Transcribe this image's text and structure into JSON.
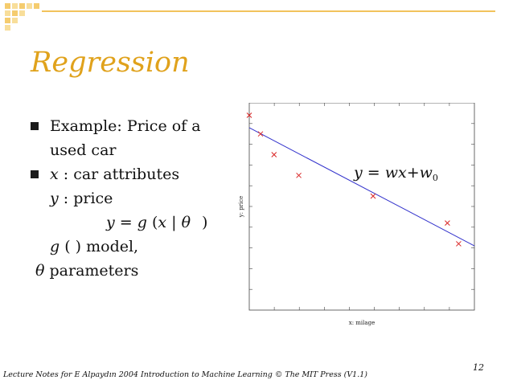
{
  "slide": {
    "title": "Regression",
    "bullets": [
      {
        "line1": "Example: Price of a",
        "line2": "used car"
      },
      {
        "var": "x",
        "rest": " : car attributes"
      }
    ],
    "y_var": "y",
    "y_rest": " : price",
    "eq": {
      "y": "y",
      "eq": " = ",
      "g": "g",
      "open": " (",
      "x": "x",
      "bar": " | ",
      "theta": "θ",
      "close": " )"
    },
    "model": {
      "g": "g",
      "rest": " ( ) model,"
    },
    "params": {
      "theta": "θ",
      "rest": " parameters"
    },
    "footer": "Lecture Notes for E Alpaydın 2004 Introduction to Machine Learning © The MIT Press (V1.1)",
    "page_number": "12"
  },
  "chart_data": {
    "type": "scatter",
    "title": "",
    "xlabel": "x: milage",
    "ylabel": "y: price",
    "xlim": [
      0,
      1
    ],
    "ylim": [
      0,
      1
    ],
    "grid": false,
    "points": [
      {
        "x": 0.0,
        "y": 0.94
      },
      {
        "x": 0.05,
        "y": 0.85
      },
      {
        "x": 0.11,
        "y": 0.75
      },
      {
        "x": 0.22,
        "y": 0.65
      },
      {
        "x": 0.55,
        "y": 0.55
      },
      {
        "x": 0.88,
        "y": 0.42
      },
      {
        "x": 0.93,
        "y": 0.32
      }
    ],
    "fit_line": {
      "x": [
        0,
        1
      ],
      "y": [
        0.88,
        0.31
      ]
    },
    "annotation": {
      "y": "y",
      "eq": " = ",
      "w": "w",
      "x": "x",
      "plus": "+",
      "w0": "w",
      "sub": "0"
    },
    "colors": {
      "points": "#d92626",
      "line": "#3333cc",
      "frame": "#444444"
    }
  }
}
